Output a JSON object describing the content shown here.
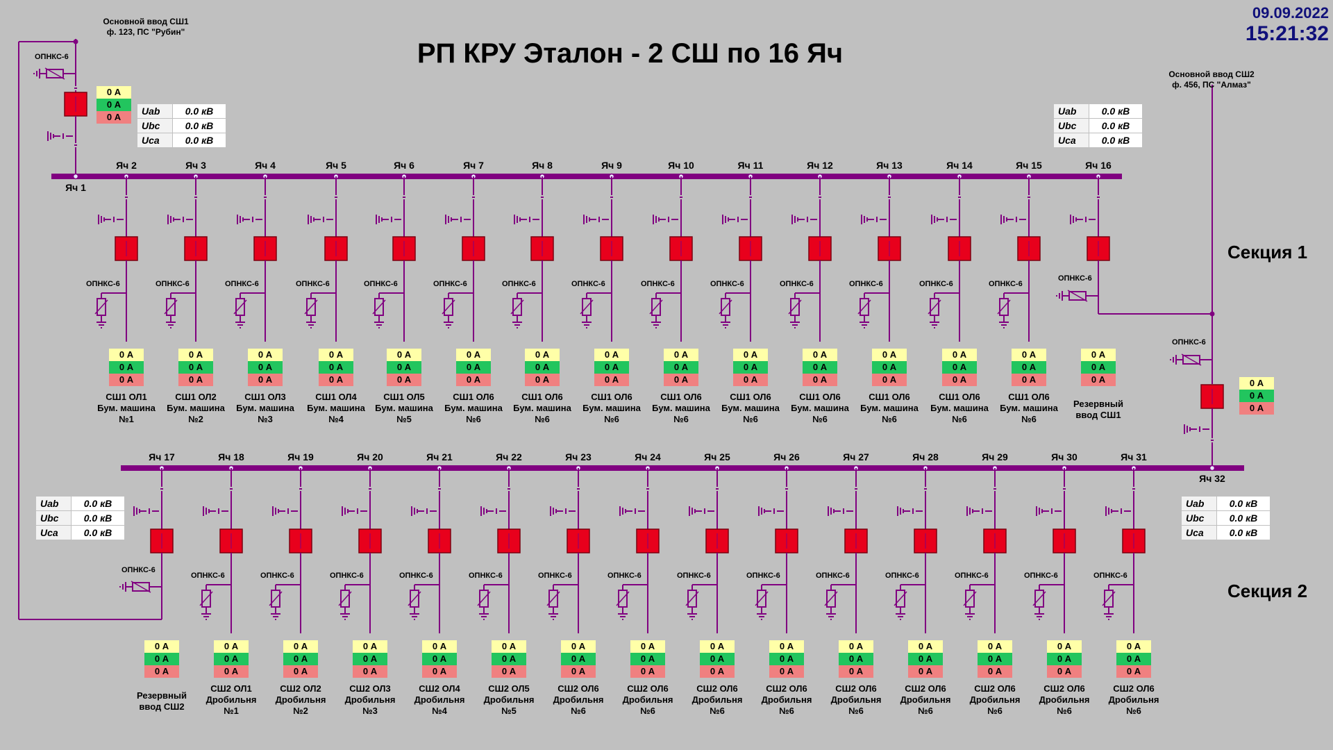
{
  "header": {
    "title": "РП КРУ Эталон - 2 СШ по 16 Яч",
    "date": "09.09.2022",
    "time": "15:21:32"
  },
  "sections": {
    "section1": "Секция 1",
    "section2": "Секция 2"
  },
  "inputs": {
    "in1": {
      "line1": "Основной ввод СШ1",
      "line2": "ф. 123, ПС \"Рубин\""
    },
    "in2": {
      "line1": "Основной ввод СШ2",
      "line2": "ф. 456, ПС \"Алмаз\""
    }
  },
  "voltage_tables": {
    "t1": [
      {
        "k": "Uab",
        "v": "0.0 кВ"
      },
      {
        "k": "Ubc",
        "v": "0.0 кВ"
      },
      {
        "k": "Uca",
        "v": "0.0 кВ"
      }
    ],
    "t2": [
      {
        "k": "Uab",
        "v": "0.0 кВ"
      },
      {
        "k": "Ubc",
        "v": "0.0 кВ"
      },
      {
        "k": "Uca",
        "v": "0.0 кВ"
      }
    ],
    "t3": [
      {
        "k": "Uab",
        "v": "0.0 кВ"
      },
      {
        "k": "Ubc",
        "v": "0.0 кВ"
      },
      {
        "k": "Uca",
        "v": "0.0 кВ"
      }
    ],
    "t4": [
      {
        "k": "Uab",
        "v": "0.0 кВ"
      },
      {
        "k": "Ubc",
        "v": "0.0 кВ"
      },
      {
        "k": "Uca",
        "v": "0.0 кВ"
      }
    ]
  },
  "surge_label": "ОПНКС-6",
  "amps": [
    "0 А",
    "0 А",
    "0 А"
  ],
  "colors": {
    "busbar": "#800080",
    "breaker": "#e8001c",
    "line": "#800080",
    "amp_yellow": "#ffffa8",
    "amp_green": "#22c55e",
    "amp_red": "#f08080"
  },
  "cells_top": [
    {
      "label": "Яч 1"
    },
    {
      "label": "Яч 2",
      "name": [
        "СШ1 ОЛ1",
        "Бум. машина",
        "№1"
      ]
    },
    {
      "label": "Яч 3",
      "name": [
        "СШ1 ОЛ2",
        "Бум. машина",
        "№2"
      ]
    },
    {
      "label": "Яч 4",
      "name": [
        "СШ1 ОЛ3",
        "Бум. машина",
        "№3"
      ]
    },
    {
      "label": "Яч 5",
      "name": [
        "СШ1 ОЛ4",
        "Бум. машина",
        "№4"
      ]
    },
    {
      "label": "Яч 6",
      "name": [
        "СШ1 ОЛ5",
        "Бум. машина",
        "№5"
      ]
    },
    {
      "label": "Яч 7",
      "name": [
        "СШ1 ОЛ6",
        "Бум. машина",
        "№6"
      ]
    },
    {
      "label": "Яч 8",
      "name": [
        "СШ1 ОЛ6",
        "Бум. машина",
        "№6"
      ]
    },
    {
      "label": "Яч 9",
      "name": [
        "СШ1 ОЛ6",
        "Бум. машина",
        "№6"
      ]
    },
    {
      "label": "Яч 10",
      "name": [
        "СШ1 ОЛ6",
        "Бум. машина",
        "№6"
      ]
    },
    {
      "label": "Яч 11",
      "name": [
        "СШ1 ОЛ6",
        "Бум. машина",
        "№6"
      ]
    },
    {
      "label": "Яч 12",
      "name": [
        "СШ1 ОЛ6",
        "Бум. машина",
        "№6"
      ]
    },
    {
      "label": "Яч 13",
      "name": [
        "СШ1 ОЛ6",
        "Бум. машина",
        "№6"
      ]
    },
    {
      "label": "Яч 14",
      "name": [
        "СШ1 ОЛ6",
        "Бум. машина",
        "№6"
      ]
    },
    {
      "label": "Яч 15",
      "name": [
        "СШ1 ОЛ6",
        "Бум. машина",
        "№6"
      ]
    },
    {
      "label": "Яч 16",
      "name": [
        "Резервный",
        "ввод СШ1"
      ]
    }
  ],
  "cells_bottom": [
    {
      "label": "Яч 17",
      "name": [
        "Резервный",
        "ввод СШ2"
      ]
    },
    {
      "label": "Яч 18",
      "name": [
        "СШ2 ОЛ1",
        "Дробильня",
        "№1"
      ]
    },
    {
      "label": "Яч 19",
      "name": [
        "СШ2 ОЛ2",
        "Дробильня",
        "№2"
      ]
    },
    {
      "label": "Яч 20",
      "name": [
        "СШ2 ОЛ3",
        "Дробильня",
        "№3"
      ]
    },
    {
      "label": "Яч 21",
      "name": [
        "СШ2 ОЛ4",
        "Дробильня",
        "№4"
      ]
    },
    {
      "label": "Яч 22",
      "name": [
        "СШ2 ОЛ5",
        "Дробильня",
        "№5"
      ]
    },
    {
      "label": "Яч 23",
      "name": [
        "СШ2 ОЛ6",
        "Дробильня",
        "№6"
      ]
    },
    {
      "label": "Яч 24",
      "name": [
        "СШ2 ОЛ6",
        "Дробильня",
        "№6"
      ]
    },
    {
      "label": "Яч 25",
      "name": [
        "СШ2 ОЛ6",
        "Дробильня",
        "№6"
      ]
    },
    {
      "label": "Яч 26",
      "name": [
        "СШ2 ОЛ6",
        "Дробильня",
        "№6"
      ]
    },
    {
      "label": "Яч 27",
      "name": [
        "СШ2 ОЛ6",
        "Дробильня",
        "№6"
      ]
    },
    {
      "label": "Яч 28",
      "name": [
        "СШ2 ОЛ6",
        "Дробильня",
        "№6"
      ]
    },
    {
      "label": "Яч 29",
      "name": [
        "СШ2 ОЛ6",
        "Дробильня",
        "№6"
      ]
    },
    {
      "label": "Яч 30",
      "name": [
        "СШ2 ОЛ6",
        "Дробильня",
        "№6"
      ]
    },
    {
      "label": "Яч 31",
      "name": [
        "СШ2 ОЛ6",
        "Дробильня",
        "№6"
      ]
    },
    {
      "label": "Яч 32"
    }
  ]
}
